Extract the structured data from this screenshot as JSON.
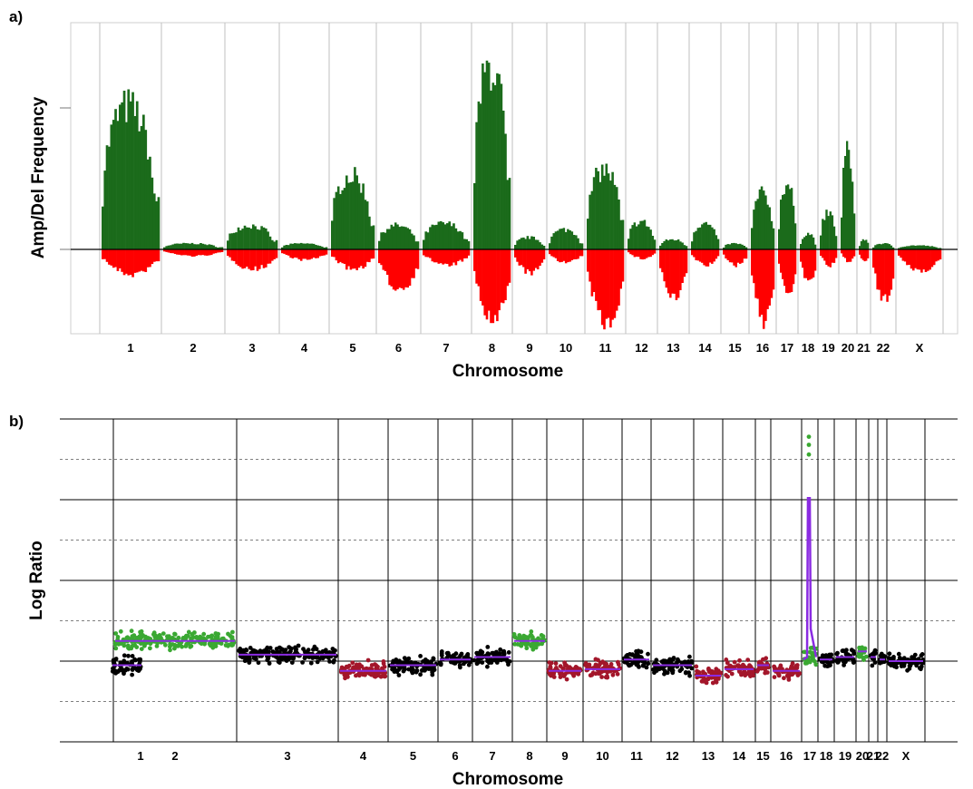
{
  "figure": {
    "panel_a_label": "a)",
    "panel_b_label": "b)"
  },
  "colors": {
    "amp": "#1b6b1b",
    "del": "#ff0000",
    "point_black": "#000000",
    "point_green": "#3aa832",
    "point_darkred": "#a3162a",
    "segment": "#8a2be2",
    "grid": "#bfbfbf"
  },
  "chart_data": [
    {
      "type": "bar",
      "panel": "a",
      "xlabel": "Chromosome",
      "ylabel": "Amp/Del Frequency",
      "y_ticks_labeled": false,
      "categories": [
        "1",
        "2",
        "3",
        "4",
        "5",
        "6",
        "7",
        "8",
        "9",
        "10",
        "11",
        "12",
        "13",
        "14",
        "15",
        "16",
        "17",
        "18",
        "19",
        "20",
        "21",
        "22",
        "X"
      ],
      "series": [
        {
          "values_amp": [
            0.72,
            0.03,
            0.12,
            0.03,
            0.37,
            0.12,
            0.13,
            0.92,
            0.06,
            0.1,
            0.4,
            0.14,
            0.05,
            0.13,
            0.03,
            0.28,
            0.33,
            0.08,
            0.18,
            0.49,
            0.05,
            0.03,
            0.02
          ],
          "values_del": [
            -0.19,
            -0.05,
            -0.15,
            -0.08,
            -0.15,
            -0.3,
            -0.12,
            -0.55,
            -0.18,
            -0.1,
            -0.56,
            -0.07,
            -0.38,
            -0.12,
            -0.12,
            -0.54,
            -0.33,
            -0.26,
            -0.13,
            -0.09,
            -0.1,
            -0.4,
            -0.16
          ]
        }
      ]
    },
    {
      "type": "scatter",
      "panel": "b",
      "xlabel": "Chromosome",
      "ylabel": "Log Ratio",
      "y_ticks_labeled": false,
      "ylim": [
        -1,
        3
      ],
      "categories": [
        "1",
        "2",
        "3",
        "4",
        "5",
        "6",
        "7",
        "8",
        "9",
        "10",
        "11",
        "12",
        "13",
        "14",
        "15",
        "16",
        "17",
        "18",
        "19",
        "20",
        "21",
        "22",
        "X"
      ],
      "segment_levels": [
        -0.05,
        0.25,
        0.08,
        -0.12,
        -0.05,
        0.02,
        0.05,
        0.25,
        -0.12,
        -0.1,
        0.02,
        -0.05,
        -0.18,
        -0.1,
        -0.05,
        -0.12,
        0.45,
        0.02,
        0.05,
        0.12,
        0.05,
        0.02,
        0.0
      ],
      "peak": {
        "chromosome": "17",
        "segment_max": 2.02,
        "point_max": 2.78
      },
      "point_colors_by_chromosome": [
        "black",
        "green",
        "black",
        "darkred",
        "black",
        "black",
        "black",
        "green",
        "darkred",
        "darkred",
        "black",
        "black",
        "darkred",
        "darkred",
        "darkred",
        "darkred",
        "green",
        "black",
        "black",
        "green",
        "black",
        "black",
        "black"
      ]
    }
  ]
}
